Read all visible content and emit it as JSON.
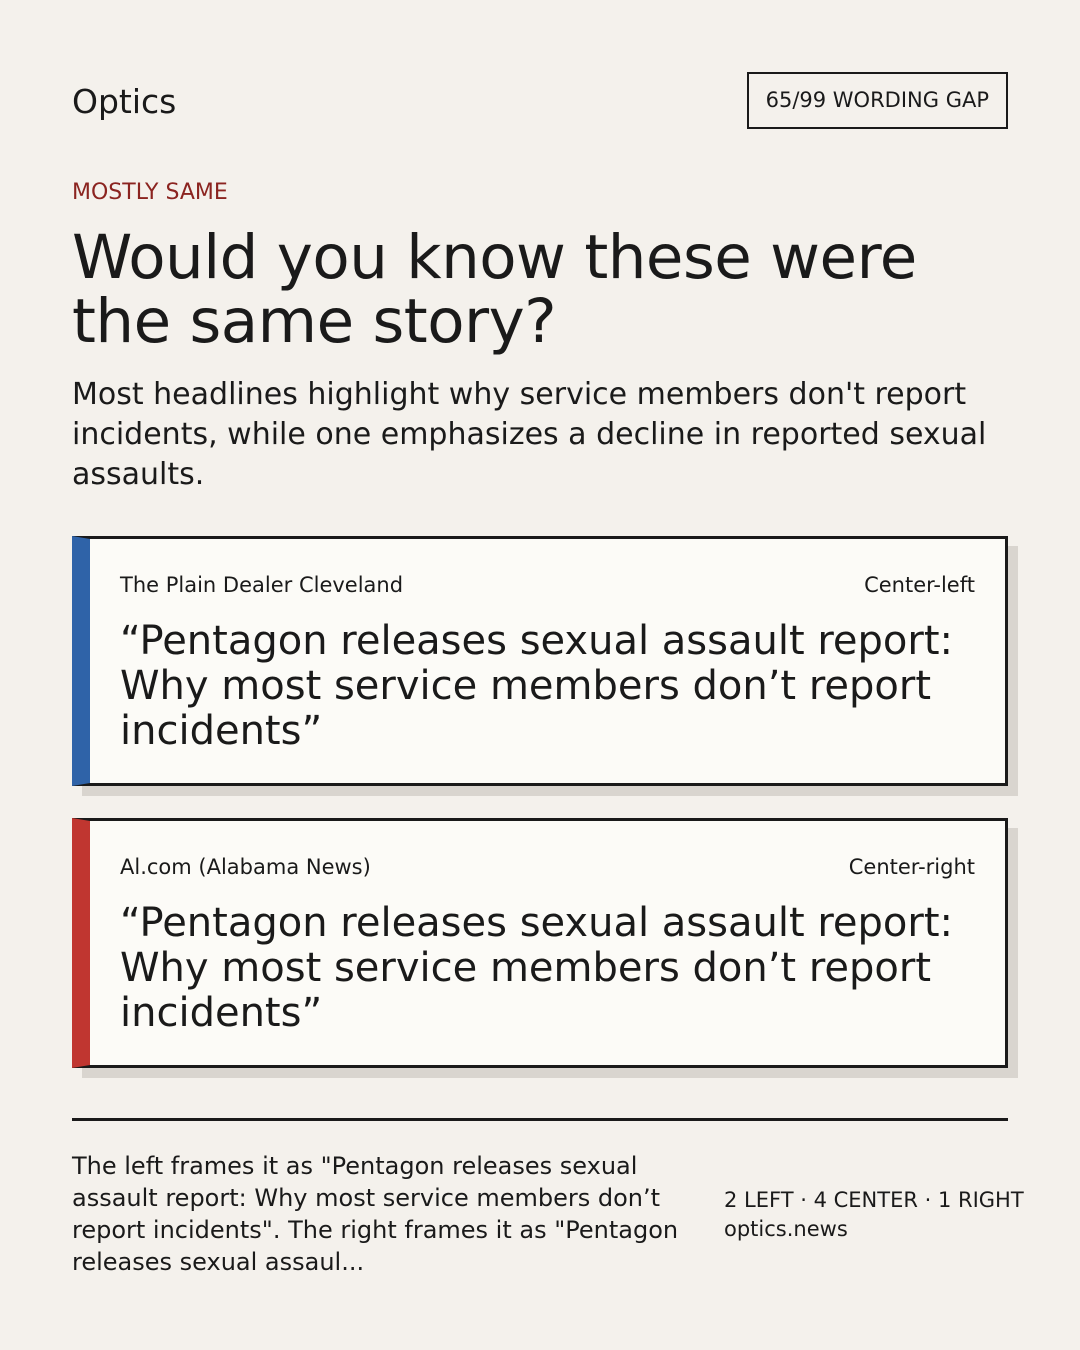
{
  "header": {
    "brand": "Optics",
    "badge": "65/99 WORDING GAP"
  },
  "kicker": "MOSTLY SAME",
  "title": "Would you know these were the same story?",
  "summary": "Most headlines highlight why service members don't report incidents, while one emphasizes a decline in reported sexual assaults.",
  "cards": [
    {
      "source": "The Plain Dealer Cleveland",
      "lean": "Center-left",
      "headline": "“Pentagon releases sexual assault report: Why most service members don’t report incidents”"
    },
    {
      "source": "Al.com (Alabama News)",
      "lean": "Center-right",
      "headline": "“Pentagon releases sexual assault report: Why most service members don’t report incidents”"
    }
  ],
  "footer": {
    "note": "The left frames it as \"Pentagon releases sexual assault report: Why most service members don’t report incidents\". The right frames it as \"Pentagon releases sexual assaul...",
    "counts": "2 LEFT · 4 CENTER · 1 RIGHT",
    "site": "optics.news"
  }
}
